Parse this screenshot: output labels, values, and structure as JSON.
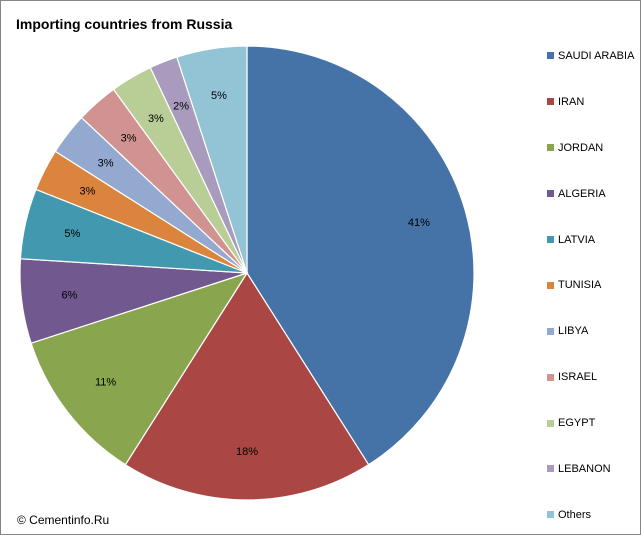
{
  "chart_data": {
    "type": "pie",
    "title": "Importing countries from Russia",
    "categories": [
      "SAUDI ARABIA",
      "IRAN",
      "JORDAN",
      "ALGERIA",
      "LATVIA",
      "TUNISIA",
      "LIBYA",
      "ISRAEL",
      "EGYPT",
      "LEBANON",
      "Others"
    ],
    "values": [
      41,
      18,
      11,
      6,
      5,
      3,
      3,
      3,
      3,
      2,
      5
    ],
    "data_labels": [
      "41%",
      "18%",
      "11%",
      "6%",
      "5%",
      "3%",
      "3%",
      "3%",
      "3%",
      "2%",
      "5%"
    ],
    "colors": [
      "#4572A7",
      "#AA4643",
      "#89A54E",
      "#71588F",
      "#4198AF",
      "#DB843D",
      "#93A9CF",
      "#D19392",
      "#B9CD96",
      "#A99BBD",
      "#92C4D6"
    ],
    "start": "12 o'clock",
    "direction": "clockwise",
    "legend_position": "right"
  },
  "footer": {
    "credit": "© Cementinfo.Ru"
  }
}
